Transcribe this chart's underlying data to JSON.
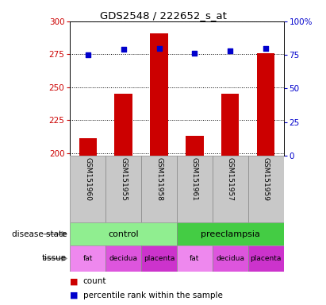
{
  "title": "GDS2548 / 222652_s_at",
  "samples": [
    "GSM151960",
    "GSM151955",
    "GSM151958",
    "GSM151961",
    "GSM151957",
    "GSM151959"
  ],
  "counts": [
    211,
    245,
    291,
    213,
    245,
    276
  ],
  "percentiles": [
    75,
    79,
    80,
    76,
    78,
    80
  ],
  "ylim_left": [
    198,
    300
  ],
  "ylim_right": [
    0,
    100
  ],
  "yticks_left": [
    200,
    225,
    250,
    275,
    300
  ],
  "yticks_right": [
    0,
    25,
    50,
    75,
    100
  ],
  "bar_color": "#cc0000",
  "dot_color": "#0000cc",
  "bar_width": 0.5,
  "control_color": "#90ee90",
  "preeclampsia_color": "#44cc44",
  "sample_bg_color": "#c8c8c8",
  "fat_color": "#ee88ee",
  "decidua_color": "#dd55dd",
  "placenta_color": "#cc33cc",
  "tissue_labels": [
    "fat",
    "decidua",
    "placenta",
    "fat",
    "decidua",
    "placenta"
  ],
  "figsize": [
    4.11,
    3.84
  ],
  "dpi": 100
}
